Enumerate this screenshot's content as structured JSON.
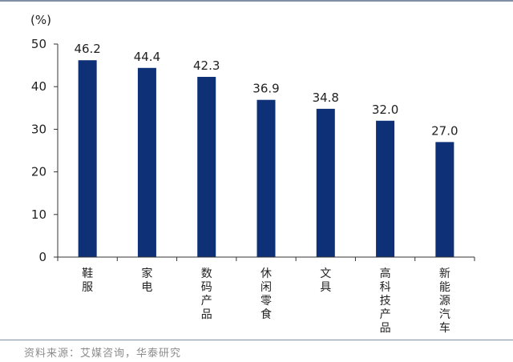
{
  "chart_data": {
    "type": "bar",
    "unit_label": "(%)",
    "categories": [
      "鞋服",
      "家电",
      "数码产品",
      "休闲零食",
      "文具",
      "高科技产品",
      "新能源汽车"
    ],
    "values": [
      46.2,
      44.4,
      42.3,
      36.9,
      34.8,
      32.0,
      27.0
    ],
    "value_labels": [
      "46.2",
      "44.4",
      "42.3",
      "36.9",
      "34.8",
      "32.0",
      "27.0"
    ],
    "ylim": [
      0,
      50
    ],
    "yticks": [
      0,
      10,
      20,
      30,
      40,
      50
    ],
    "bar_color": "#0d3077",
    "grid": false,
    "legend": "none"
  },
  "source": "资料来源：艾媒咨询，华泰研究"
}
